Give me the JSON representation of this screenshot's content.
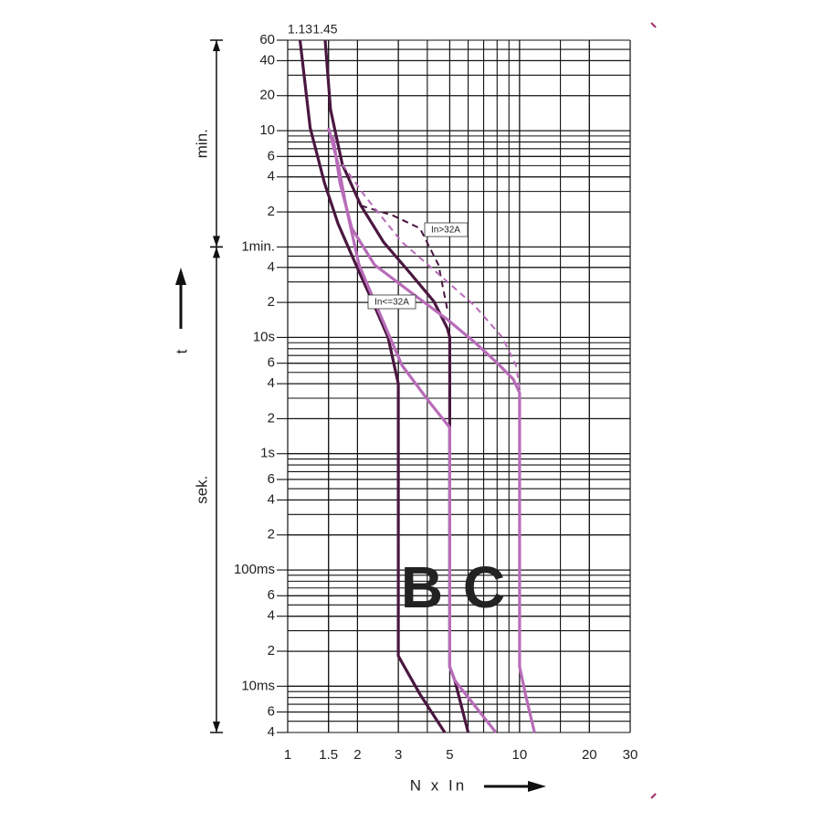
{
  "chart_data": {
    "type": "line",
    "xlabel": "N x In",
    "ylabel": "t",
    "xscale": "log",
    "yscale": "log",
    "xlim": [
      1,
      30
    ],
    "ylim": [
      0.004,
      3600
    ],
    "xticks": [
      1,
      1.5,
      2,
      3,
      5,
      10,
      20,
      30
    ],
    "yticks": [
      {
        "value": 3600,
        "label": "60"
      },
      {
        "value": 2400,
        "label": "40"
      },
      {
        "value": 1200,
        "label": "20"
      },
      {
        "value": 600,
        "label": "10"
      },
      {
        "value": 360,
        "label": "6"
      },
      {
        "value": 240,
        "label": "4"
      },
      {
        "value": 120,
        "label": "2"
      },
      {
        "value": 60,
        "label": "1min."
      },
      {
        "value": 40,
        "label": "4"
      },
      {
        "value": 20,
        "label": "2"
      },
      {
        "value": 10,
        "label": "10s"
      },
      6,
      4,
      2,
      {
        "value": 1,
        "label": "1s"
      },
      {
        "value": 0.6,
        "label": "6"
      },
      {
        "value": 0.4,
        "label": "4"
      },
      {
        "value": 0.2,
        "label": "2"
      },
      {
        "value": 0.1,
        "label": "100ms"
      },
      {
        "value": 0.06,
        "label": "6"
      },
      {
        "value": 0.04,
        "label": "4"
      },
      {
        "value": 0.02,
        "label": "2"
      },
      {
        "value": 0.01,
        "label": "10ms"
      },
      {
        "value": 0.006,
        "label": "6"
      },
      {
        "value": 0.004,
        "label": "4"
      }
    ],
    "top_ticks": [
      1.13,
      1.45
    ],
    "grid": true,
    "minor_grid": true,
    "ranges": [
      {
        "label": "min.",
        "from": 3600,
        "to": 60
      },
      {
        "label": "sek.",
        "from": 60,
        "to": 0.004
      }
    ],
    "series": [
      {
        "color": "#4a1740",
        "dashed": false,
        "x": [
          1.13,
          1.25,
          1.44,
          1.65,
          1.97,
          2.37,
          2.71,
          3,
          3,
          3.72,
          4.76
        ],
        "values": [
          3600,
          634,
          214,
          94.8,
          42.1,
          18.6,
          10,
          4,
          0.0182,
          0.00854,
          0.004
        ]
      },
      {
        "color": "#4a1740",
        "dashed": false,
        "x": [
          1.45,
          1.53,
          1.72,
          2.07,
          2.59,
          3.4,
          4.27,
          4.89,
          5,
          5,
          5.26,
          6
        ],
        "values": [
          3600,
          910,
          308,
          136,
          66.1,
          35.1,
          20.4,
          11.9,
          10,
          0.0147,
          0.0112,
          0.004
        ]
      },
      {
        "color": "#4a1740",
        "dashed": true,
        "x": [
          2.07,
          2.84,
          3.72,
          4.47,
          4.89
        ],
        "values": [
          136,
          112,
          86.7,
          42.1,
          17
        ]
      },
      {
        "color": "#b86cb8",
        "dashed": false,
        "x": [
          1.5,
          1.65,
          1.8,
          2.03,
          2.37,
          3.11,
          4.08,
          5,
          5,
          5.26,
          7.91
        ],
        "values": [
          634,
          308,
          124,
          42.1,
          20.4,
          5.75,
          2.79,
          1.68,
          0.0147,
          0.0112,
          0.004
        ]
      },
      {
        "color": "#b86cb8",
        "dashed": false,
        "x": [
          1.57,
          1.68,
          1.89,
          2.37,
          3.4,
          4.89,
          6.42,
          8.05,
          9.39,
          10,
          10,
          10.6,
          11.6
        ],
        "values": [
          529,
          214,
          86.7,
          42.1,
          24.4,
          14.2,
          9.04,
          5.96,
          4.38,
          3.34,
          0.0147,
          0.00854,
          0.004
        ]
      },
      {
        "color": "#b86cb8",
        "dashed": true,
        "x": [
          1.72,
          2.16,
          3.11,
          4.47,
          6.42,
          8.43,
          9.65,
          10
        ],
        "values": [
          308,
          163,
          66.1,
          35.1,
          18.6,
          10,
          5.75,
          3.66
        ]
      }
    ],
    "curve_labels": [
      {
        "text": "B",
        "color": "#4a1740"
      },
      {
        "text": "C",
        "color": "#b86cb8"
      }
    ],
    "annotations": [
      "In>32A",
      "In<=32A"
    ]
  }
}
